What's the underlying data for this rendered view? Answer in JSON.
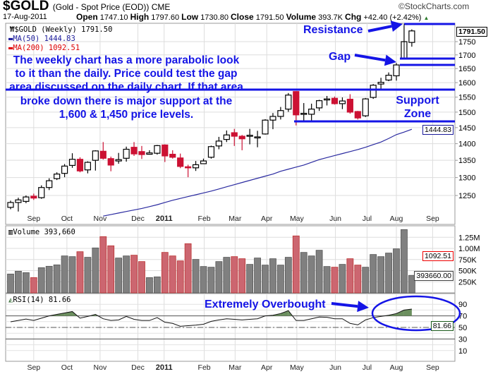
{
  "header": {
    "symbol": "$GOLD",
    "description": "(Gold - Spot Price (EOD)) CME",
    "brand": "©StockCharts.com",
    "date": "17-Aug-2011",
    "open_label": "Open",
    "open": "1747.10",
    "high_label": "High",
    "high": "1797.60",
    "low_label": "Low",
    "low": "1730.80",
    "close_label": "Close",
    "close": "1791.50",
    "volume_label": "Volume",
    "volume": "393.7K",
    "chg_label": "Chg",
    "chg": "+42.40 (+2.42%)"
  },
  "legend": {
    "price": "$GOLD (Weekly) 1791.50",
    "ma50": "MA(50) 1444.83",
    "ma200": "MA(200) 1092.51",
    "volume": "Volume 393,660",
    "rsi": "RSI(14) 81.66"
  },
  "tags": {
    "price": "1791.50",
    "ma50": "1444.83",
    "ma200": "1092.51",
    "volume": "393660.00",
    "rsi": "81.66"
  },
  "annotations": {
    "paragraph": [
      "The weekly chart has a more parabolic look",
      "to it than the daily. Price could test the gap",
      "area discussed on the daily chart. If that area",
      "broke down there is major support at the",
      "1,600 & 1,450 price levels."
    ],
    "resistance": "Resistance",
    "gap": "Gap",
    "support_1": "Support",
    "support_2": "Zone",
    "overbought": "Extremely Overbought"
  },
  "colors": {
    "up": "#ffffff",
    "down": "#cc1133",
    "vol_up": "#808080",
    "vol_down": "#cc6670",
    "ma50": "#2a2aa0",
    "annotation": "#1414e6",
    "rsi_fill": "#6b8f5e"
  },
  "chart_data": {
    "type": "candlestick",
    "title": "$GOLD (Weekly)",
    "price_scale": "log",
    "price_ticks": [
      "1250",
      "1300",
      "1350",
      "1400",
      "1450",
      "1500",
      "1550",
      "1600",
      "1650",
      "1700",
      "1750"
    ],
    "months": [
      {
        "label": "Sep",
        "week": 3.0
      },
      {
        "label": "Oct",
        "week": 7.3
      },
      {
        "label": "Nov",
        "week": 11.6
      },
      {
        "label": "Dec",
        "week": 16.5
      },
      {
        "label": "2011",
        "week": 19.9,
        "bold": true
      },
      {
        "label": "Feb",
        "week": 25.1
      },
      {
        "label": "Mar",
        "week": 29.1
      },
      {
        "label": "Apr",
        "week": 33.2
      },
      {
        "label": "May",
        "week": 37.1
      },
      {
        "label": "Jun",
        "week": 42.1
      },
      {
        "label": "Jul",
        "week": 46.2
      },
      {
        "label": "Aug",
        "week": 50.0
      },
      {
        "label": "Sep",
        "week": 54.7
      }
    ],
    "ohlc": [
      [
        1218,
        1236,
        1213,
        1231
      ],
      [
        1231,
        1244,
        1207,
        1238
      ],
      [
        1234,
        1250,
        1229,
        1246
      ],
      [
        1248,
        1255,
        1238,
        1243
      ],
      [
        1244,
        1278,
        1241,
        1272
      ],
      [
        1272,
        1298,
        1265,
        1291
      ],
      [
        1297,
        1315,
        1293,
        1310
      ],
      [
        1312,
        1339,
        1301,
        1333
      ],
      [
        1335,
        1371,
        1328,
        1353
      ],
      [
        1353,
        1359,
        1315,
        1319
      ],
      [
        1322,
        1347,
        1312,
        1344
      ],
      [
        1350,
        1380,
        1320,
        1378
      ],
      [
        1377,
        1405,
        1352,
        1356
      ],
      [
        1355,
        1361,
        1318,
        1336
      ],
      [
        1348,
        1372,
        1340,
        1352
      ],
      [
        1356,
        1391,
        1346,
        1383
      ],
      [
        1389,
        1405,
        1363,
        1369
      ],
      [
        1376,
        1393,
        1354,
        1367
      ],
      [
        1368,
        1380,
        1367,
        1372
      ],
      [
        1371,
        1396,
        1367,
        1394
      ],
      [
        1396,
        1398,
        1345,
        1363
      ],
      [
        1368,
        1380,
        1355,
        1359
      ],
      [
        1357,
        1370,
        1327,
        1332
      ],
      [
        1331,
        1337,
        1301,
        1330
      ],
      [
        1328,
        1348,
        1319,
        1337
      ],
      [
        1340,
        1355,
        1339,
        1348
      ],
      [
        1359,
        1394,
        1355,
        1391
      ],
      [
        1393,
        1421,
        1383,
        1408
      ],
      [
        1413,
        1441,
        1405,
        1427
      ],
      [
        1434,
        1446,
        1393,
        1423
      ],
      [
        1423,
        1427,
        1380,
        1415
      ],
      [
        1424,
        1446,
        1398,
        1426
      ],
      [
        1421,
        1440,
        1389,
        1421
      ],
      [
        1430,
        1477,
        1428,
        1474
      ],
      [
        1474,
        1497,
        1445,
        1486
      ],
      [
        1486,
        1517,
        1476,
        1505
      ],
      [
        1510,
        1564,
        1501,
        1557
      ],
      [
        1569,
        1570,
        1457,
        1491
      ],
      [
        1494,
        1530,
        1469,
        1496
      ],
      [
        1493,
        1528,
        1471,
        1510
      ],
      [
        1514,
        1541,
        1504,
        1538
      ],
      [
        1542,
        1554,
        1522,
        1544
      ],
      [
        1546,
        1552,
        1525,
        1528
      ],
      [
        1528,
        1549,
        1510,
        1537
      ],
      [
        1543,
        1560,
        1495,
        1500
      ],
      [
        1502,
        1504,
        1476,
        1481
      ],
      [
        1488,
        1547,
        1484,
        1544
      ],
      [
        1549,
        1595,
        1544,
        1591
      ],
      [
        1595,
        1617,
        1575,
        1601
      ],
      [
        1609,
        1636,
        1605,
        1626
      ],
      [
        1624,
        1670,
        1607,
        1663
      ],
      [
        1688,
        1812,
        1684,
        1750
      ],
      [
        1747.1,
        1797.6,
        1730.8,
        1791.5
      ]
    ],
    "ma50": [
      null,
      null,
      null,
      null,
      null,
      null,
      null,
      null,
      null,
      null,
      null,
      null,
      1195,
      1199,
      1203,
      1207,
      1211,
      1215,
      1220,
      1225,
      1231,
      1237,
      1242,
      1247,
      1252,
      1257,
      1262,
      1268,
      1274,
      1280,
      1286,
      1292,
      1298,
      1304,
      1310,
      1318,
      1324,
      1330,
      1336,
      1344,
      1352,
      1358,
      1364,
      1370,
      1376,
      1382,
      1389,
      1397,
      1405,
      1416,
      1428,
      1436,
      1444.83
    ],
    "volume_ticks": [
      {
        "label": "1.25M",
        "value": 1250
      },
      {
        "label": "1.00M",
        "value": 1000
      },
      {
        "label": "750K",
        "value": 750
      },
      {
        "label": "500K",
        "value": 500
      },
      {
        "label": "250K",
        "value": 250
      }
    ],
    "volume_k": [
      424,
      487,
      455,
      344,
      567,
      598,
      630,
      831,
      815,
      926,
      800,
      1011,
      1265,
      1059,
      784,
      831,
      847,
      704,
      344,
      360,
      910,
      831,
      720,
      1106,
      752,
      593,
      577,
      704,
      800,
      815,
      768,
      641,
      784,
      625,
      768,
      625,
      800,
      1281,
      910,
      831,
      958,
      593,
      577,
      641,
      768,
      625,
      577,
      863,
      815,
      895,
      990,
      1424,
      393.66
    ],
    "rsi_ticks": [
      "90",
      "70",
      "50",
      "30",
      "10"
    ],
    "rsi": [
      59.8,
      62,
      64.5,
      62,
      66,
      70,
      72.5,
      75,
      77.5,
      66,
      69,
      72.5,
      65,
      62,
      63,
      69,
      64,
      62,
      62,
      67,
      59,
      57,
      52,
      53,
      54,
      55.5,
      60.5,
      63,
      65,
      64,
      63,
      64,
      65,
      70,
      71,
      74,
      79,
      62,
      62,
      65,
      68,
      67.5,
      65,
      65,
      57,
      54.4,
      63,
      67,
      69,
      71,
      74,
      80,
      81.66
    ]
  }
}
